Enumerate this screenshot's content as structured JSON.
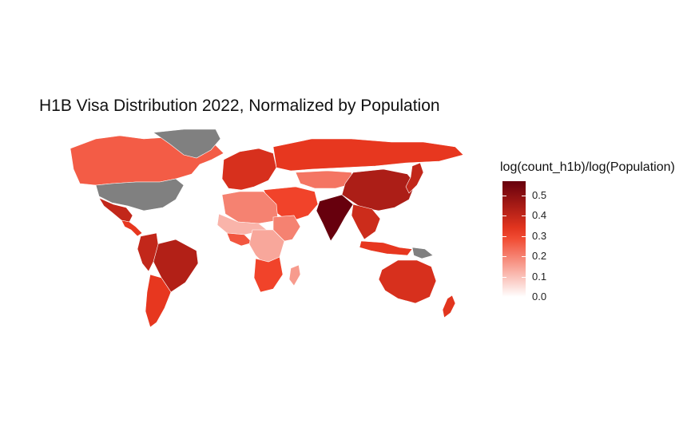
{
  "title": "H1B Visa Distribution 2022, Normalized by Population",
  "legend": {
    "title": "log(count_h1b)/log(Population)",
    "ticks": [
      "0.5",
      "0.4",
      "0.3",
      "0.2",
      "0.1",
      "0.0"
    ],
    "range": [
      0.0,
      0.57
    ],
    "color_low": "#ffffff",
    "color_mid": "#f03b20",
    "color_high": "#67000d"
  },
  "map": {
    "no_data_color": "#808080",
    "regions": [
      {
        "name": "Canada",
        "value": 0.26
      },
      {
        "name": "Greenland",
        "value": null
      },
      {
        "name": "United States",
        "value": null
      },
      {
        "name": "Mexico",
        "value": 0.4
      },
      {
        "name": "Central America",
        "value": 0.33
      },
      {
        "name": "Brazil",
        "value": 0.43
      },
      {
        "name": "Peru",
        "value": 0.4
      },
      {
        "name": "Argentina",
        "value": 0.33
      },
      {
        "name": "Europe",
        "value": 0.36
      },
      {
        "name": "Russia",
        "value": 0.33
      },
      {
        "name": "Central Asia",
        "value": 0.22
      },
      {
        "name": "Middle East",
        "value": 0.3
      },
      {
        "name": "North Africa",
        "value": 0.2
      },
      {
        "name": "Sahel",
        "value": 0.12
      },
      {
        "name": "West Africa",
        "value": 0.27
      },
      {
        "name": "Central Africa",
        "value": 0.14
      },
      {
        "name": "East Africa",
        "value": 0.2
      },
      {
        "name": "Southern Africa",
        "value": 0.3
      },
      {
        "name": "Madagascar",
        "value": 0.16
      },
      {
        "name": "India",
        "value": 0.57
      },
      {
        "name": "China",
        "value": 0.44
      },
      {
        "name": "Southeast Asia",
        "value": 0.38
      },
      {
        "name": "Japan",
        "value": 0.4
      },
      {
        "name": "Indonesia",
        "value": 0.33
      },
      {
        "name": "Papua New Guinea",
        "value": null
      },
      {
        "name": "Australia",
        "value": 0.36
      },
      {
        "name": "New Zealand",
        "value": 0.34
      }
    ]
  }
}
